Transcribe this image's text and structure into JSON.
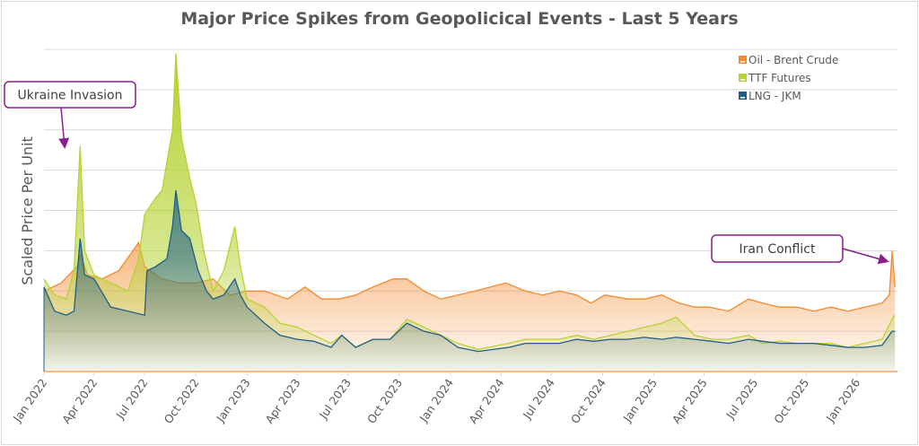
{
  "chart_data": {
    "type": "area",
    "title": "Major Price Spikes from Geopolicical Events - Last 5 Years",
    "xlabel": "",
    "ylabel": "Scaled Price Per Unit",
    "ylim": [
      0,
      8
    ],
    "y_tick_labels_shown": false,
    "grid": "horizontal",
    "legend_placement": "top-right",
    "x_tick_labels": [
      "Jan 2022",
      "Apr 2022",
      "Jul 2022",
      "Oct 2022",
      "Jan 2023",
      "Apr 2023",
      "Jul 2023",
      "Oct 2023",
      "Jan 2024",
      "Apr 2024",
      "Jul 2024",
      "Oct 2024",
      "Jan 2025",
      "Apr 2025",
      "Jul 2025",
      "Oct 2025",
      "Jan 2026"
    ],
    "x_tick_dates": [
      "2022-01-01",
      "2022-04-01",
      "2022-07-01",
      "2022-10-01",
      "2023-01-01",
      "2023-04-01",
      "2023-07-01",
      "2023-10-01",
      "2024-01-01",
      "2024-04-01",
      "2024-07-01",
      "2024-10-01",
      "2025-01-01",
      "2025-04-01",
      "2025-07-01",
      "2025-10-01",
      "2026-01-01"
    ],
    "annotations": [
      {
        "text": "Ukraine Invasion",
        "date": "2022-02-24"
      },
      {
        "text": "Iran Conflict",
        "date": "2026-03-05"
      }
    ],
    "series": [
      {
        "name": "Oil - Brent Crude",
        "color": "#f28a2e",
        "points": [
          [
            "2022-01-01",
            2.0
          ],
          [
            "2022-02-01",
            2.2
          ],
          [
            "2022-03-01",
            2.6
          ],
          [
            "2022-03-08",
            2.9
          ],
          [
            "2022-03-20",
            2.4
          ],
          [
            "2022-04-15",
            2.3
          ],
          [
            "2022-05-15",
            2.5
          ],
          [
            "2022-06-10",
            3.0
          ],
          [
            "2022-06-20",
            3.2
          ],
          [
            "2022-07-01",
            2.6
          ],
          [
            "2022-08-01",
            2.3
          ],
          [
            "2022-09-01",
            2.2
          ],
          [
            "2022-10-01",
            2.2
          ],
          [
            "2022-11-01",
            2.3
          ],
          [
            "2022-12-01",
            1.9
          ],
          [
            "2023-01-01",
            2.0
          ],
          [
            "2023-02-01",
            2.0
          ],
          [
            "2023-03-15",
            1.8
          ],
          [
            "2023-04-15",
            2.1
          ],
          [
            "2023-05-15",
            1.8
          ],
          [
            "2023-06-15",
            1.8
          ],
          [
            "2023-07-15",
            1.9
          ],
          [
            "2023-08-15",
            2.1
          ],
          [
            "2023-09-20",
            2.3
          ],
          [
            "2023-10-15",
            2.3
          ],
          [
            "2023-11-15",
            2.0
          ],
          [
            "2023-12-15",
            1.8
          ],
          [
            "2024-01-15",
            1.9
          ],
          [
            "2024-02-15",
            2.0
          ],
          [
            "2024-04-10",
            2.2
          ],
          [
            "2024-05-15",
            2.0
          ],
          [
            "2024-06-15",
            1.9
          ],
          [
            "2024-07-15",
            2.0
          ],
          [
            "2024-08-15",
            1.9
          ],
          [
            "2024-09-10",
            1.7
          ],
          [
            "2024-10-05",
            1.9
          ],
          [
            "2024-11-15",
            1.8
          ],
          [
            "2024-12-15",
            1.8
          ],
          [
            "2025-01-15",
            1.9
          ],
          [
            "2025-02-15",
            1.7
          ],
          [
            "2025-03-15",
            1.6
          ],
          [
            "2025-04-10",
            1.6
          ],
          [
            "2025-05-15",
            1.5
          ],
          [
            "2025-06-20",
            1.8
          ],
          [
            "2025-07-15",
            1.7
          ],
          [
            "2025-08-15",
            1.6
          ],
          [
            "2025-09-15",
            1.6
          ],
          [
            "2025-10-15",
            1.5
          ],
          [
            "2025-11-15",
            1.6
          ],
          [
            "2025-12-15",
            1.5
          ],
          [
            "2026-01-15",
            1.6
          ],
          [
            "2026-02-15",
            1.7
          ],
          [
            "2026-02-28",
            1.9
          ],
          [
            "2026-03-05",
            3.0
          ],
          [
            "2026-03-10",
            2.1
          ]
        ]
      },
      {
        "name": "TTF Futures",
        "color": "#b5d334",
        "points": [
          [
            "2022-01-01",
            2.3
          ],
          [
            "2022-01-20",
            1.9
          ],
          [
            "2022-02-10",
            1.8
          ],
          [
            "2022-02-24",
            2.5
          ],
          [
            "2022-03-07",
            5.6
          ],
          [
            "2022-03-15",
            3.0
          ],
          [
            "2022-04-01",
            2.4
          ],
          [
            "2022-05-01",
            2.2
          ],
          [
            "2022-06-01",
            2.0
          ],
          [
            "2022-06-20",
            2.8
          ],
          [
            "2022-07-01",
            3.9
          ],
          [
            "2022-07-20",
            4.3
          ],
          [
            "2022-08-01",
            4.5
          ],
          [
            "2022-08-20",
            6.0
          ],
          [
            "2022-08-26",
            7.9
          ],
          [
            "2022-09-05",
            5.8
          ],
          [
            "2022-09-20",
            4.8
          ],
          [
            "2022-10-01",
            4.2
          ],
          [
            "2022-10-15",
            3.0
          ],
          [
            "2022-11-01",
            2.0
          ],
          [
            "2022-11-20",
            2.5
          ],
          [
            "2022-12-10",
            3.6
          ],
          [
            "2022-12-20",
            2.6
          ],
          [
            "2023-01-01",
            1.8
          ],
          [
            "2023-02-01",
            1.6
          ],
          [
            "2023-03-01",
            1.2
          ],
          [
            "2023-04-01",
            1.1
          ],
          [
            "2023-05-01",
            0.9
          ],
          [
            "2023-06-01",
            0.7
          ],
          [
            "2023-06-20",
            0.9
          ],
          [
            "2023-07-15",
            0.6
          ],
          [
            "2023-08-15",
            0.8
          ],
          [
            "2023-09-15",
            0.8
          ],
          [
            "2023-10-15",
            1.3
          ],
          [
            "2023-11-15",
            1.1
          ],
          [
            "2023-12-15",
            0.9
          ],
          [
            "2024-01-15",
            0.7
          ],
          [
            "2024-02-20",
            0.55
          ],
          [
            "2024-04-15",
            0.7
          ],
          [
            "2024-05-15",
            0.8
          ],
          [
            "2024-07-15",
            0.8
          ],
          [
            "2024-08-15",
            0.9
          ],
          [
            "2024-09-15",
            0.8
          ],
          [
            "2024-10-15",
            0.9
          ],
          [
            "2024-11-15",
            1.0
          ],
          [
            "2024-12-15",
            1.1
          ],
          [
            "2025-01-15",
            1.2
          ],
          [
            "2025-02-10",
            1.35
          ],
          [
            "2025-03-15",
            0.9
          ],
          [
            "2025-04-15",
            0.8
          ],
          [
            "2025-05-15",
            0.8
          ],
          [
            "2025-06-20",
            0.9
          ],
          [
            "2025-07-15",
            0.7
          ],
          [
            "2025-08-15",
            0.75
          ],
          [
            "2025-09-15",
            0.7
          ],
          [
            "2025-10-15",
            0.7
          ],
          [
            "2025-11-15",
            0.7
          ],
          [
            "2025-12-15",
            0.6
          ],
          [
            "2026-01-15",
            0.7
          ],
          [
            "2026-02-15",
            0.8
          ],
          [
            "2026-03-05",
            1.3
          ],
          [
            "2026-03-10",
            1.4
          ]
        ]
      },
      {
        "name": "LNG - JKM",
        "color": "#1f5f87",
        "points": [
          [
            "2022-01-01",
            2.1
          ],
          [
            "2022-01-20",
            1.5
          ],
          [
            "2022-02-10",
            1.4
          ],
          [
            "2022-02-24",
            1.5
          ],
          [
            "2022-03-07",
            3.3
          ],
          [
            "2022-03-15",
            2.4
          ],
          [
            "2022-04-01",
            2.3
          ],
          [
            "2022-05-01",
            1.6
          ],
          [
            "2022-06-01",
            1.5
          ],
          [
            "2022-07-01",
            1.4
          ],
          [
            "2022-07-05",
            2.5
          ],
          [
            "2022-07-20",
            2.6
          ],
          [
            "2022-08-10",
            2.8
          ],
          [
            "2022-08-20",
            3.6
          ],
          [
            "2022-08-26",
            4.5
          ],
          [
            "2022-09-05",
            3.5
          ],
          [
            "2022-09-20",
            3.3
          ],
          [
            "2022-10-05",
            2.5
          ],
          [
            "2022-10-20",
            2.0
          ],
          [
            "2022-11-01",
            1.8
          ],
          [
            "2022-11-20",
            1.9
          ],
          [
            "2022-12-10",
            2.3
          ],
          [
            "2022-12-20",
            1.9
          ],
          [
            "2023-01-01",
            1.6
          ],
          [
            "2023-02-01",
            1.2
          ],
          [
            "2023-03-01",
            0.9
          ],
          [
            "2023-04-01",
            0.8
          ],
          [
            "2023-05-01",
            0.75
          ],
          [
            "2023-06-01",
            0.6
          ],
          [
            "2023-06-20",
            0.9
          ],
          [
            "2023-07-15",
            0.6
          ],
          [
            "2023-08-15",
            0.8
          ],
          [
            "2023-09-15",
            0.8
          ],
          [
            "2023-10-15",
            1.2
          ],
          [
            "2023-11-15",
            1.0
          ],
          [
            "2023-12-15",
            0.9
          ],
          [
            "2024-01-15",
            0.6
          ],
          [
            "2024-02-20",
            0.5
          ],
          [
            "2024-04-15",
            0.6
          ],
          [
            "2024-05-15",
            0.7
          ],
          [
            "2024-07-15",
            0.7
          ],
          [
            "2024-08-15",
            0.8
          ],
          [
            "2024-09-15",
            0.75
          ],
          [
            "2024-10-15",
            0.8
          ],
          [
            "2024-11-15",
            0.8
          ],
          [
            "2024-12-15",
            0.85
          ],
          [
            "2025-01-15",
            0.8
          ],
          [
            "2025-02-10",
            0.85
          ],
          [
            "2025-03-15",
            0.8
          ],
          [
            "2025-04-15",
            0.75
          ],
          [
            "2025-05-15",
            0.7
          ],
          [
            "2025-06-20",
            0.8
          ],
          [
            "2025-07-15",
            0.75
          ],
          [
            "2025-08-15",
            0.7
          ],
          [
            "2025-09-15",
            0.7
          ],
          [
            "2025-10-15",
            0.7
          ],
          [
            "2025-11-15",
            0.65
          ],
          [
            "2025-12-15",
            0.6
          ],
          [
            "2026-01-15",
            0.6
          ],
          [
            "2026-02-15",
            0.65
          ],
          [
            "2026-03-05",
            1.0
          ],
          [
            "2026-03-10",
            1.0
          ]
        ]
      }
    ],
    "annotation_color": "#8b1e8f"
  }
}
